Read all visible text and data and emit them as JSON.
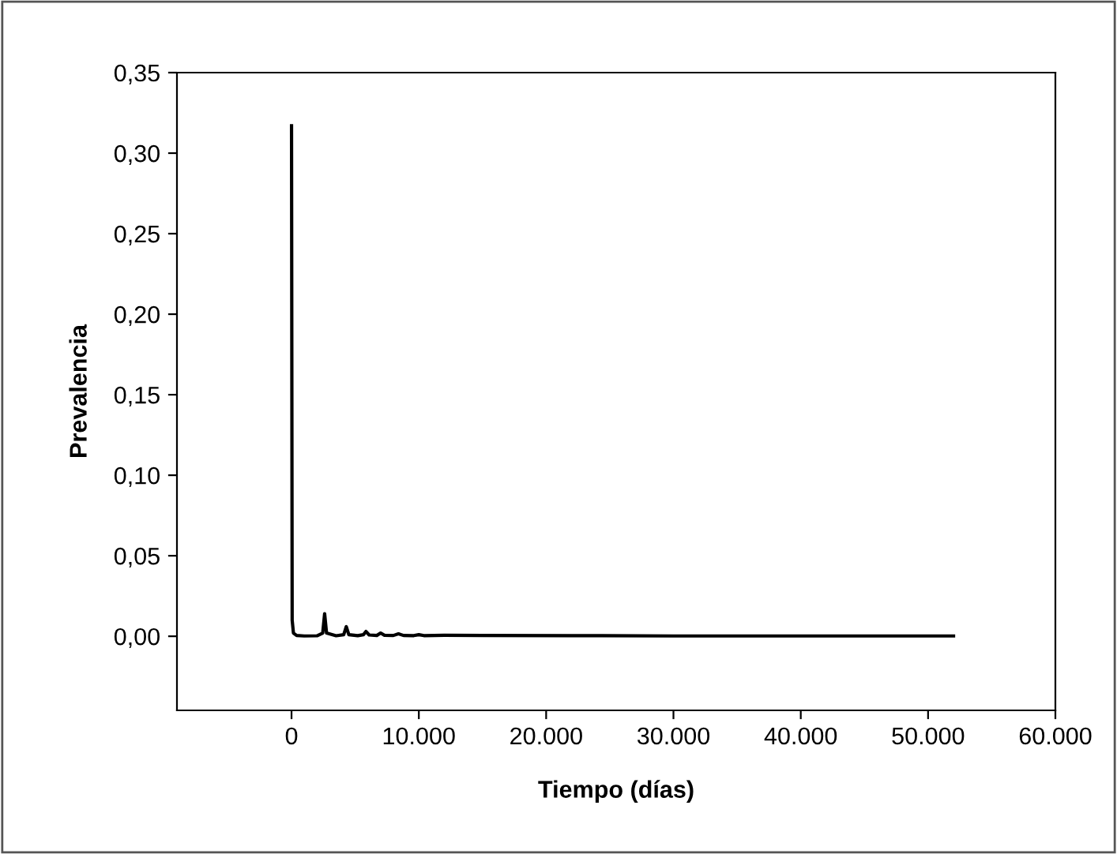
{
  "chart_data": {
    "type": "line",
    "xlabel": "Tiempo (días)",
    "ylabel": "Prevalencia",
    "x": [
      0,
      50,
      150,
      400,
      1000,
      2000,
      2450,
      2600,
      2750,
      3500,
      4100,
      4300,
      4500,
      5200,
      5650,
      5850,
      6100,
      6700,
      7000,
      7300,
      8000,
      8400,
      8800,
      9600,
      10000,
      10400,
      12000,
      15000,
      22000,
      30000,
      40000,
      52000
    ],
    "series": [
      {
        "color": "#000000",
        "values": [
          0.317,
          0.01,
          0.002,
          0.0005,
          0.0002,
          0.0003,
          0.002,
          0.014,
          0.002,
          0.0003,
          0.001,
          0.006,
          0.001,
          0.0004,
          0.001,
          0.003,
          0.0008,
          0.0005,
          0.002,
          0.0006,
          0.0005,
          0.0015,
          0.0005,
          0.0004,
          0.001,
          0.0004,
          0.0006,
          0.0005,
          0.0004,
          0.0002,
          0.0002,
          0.0002
        ]
      }
    ],
    "xlim": [
      -9000,
      60000
    ],
    "xticks": [
      {
        "value": 0,
        "label": "0"
      },
      {
        "value": 10000,
        "label": "10.000"
      },
      {
        "value": 20000,
        "label": "20.000"
      },
      {
        "value": 30000,
        "label": "30.000"
      },
      {
        "value": 40000,
        "label": "40.000"
      },
      {
        "value": 50000,
        "label": "50.000"
      },
      {
        "value": 60000,
        "label": "60.000"
      }
    ],
    "ylim": [
      -0.046,
      0.35
    ],
    "yticks": [
      {
        "value": 0,
        "label": "0,00"
      },
      {
        "value": 0.05,
        "label": "0,05"
      },
      {
        "value": 0.1,
        "label": "0,10"
      },
      {
        "value": 0.15,
        "label": "0,15"
      },
      {
        "value": 0.2,
        "label": "0,20"
      },
      {
        "value": 0.25,
        "label": "0,25"
      },
      {
        "value": 0.3,
        "label": "0,30"
      },
      {
        "value": 0.35,
        "label": "0,35"
      }
    ],
    "grid": false,
    "legend": false
  }
}
